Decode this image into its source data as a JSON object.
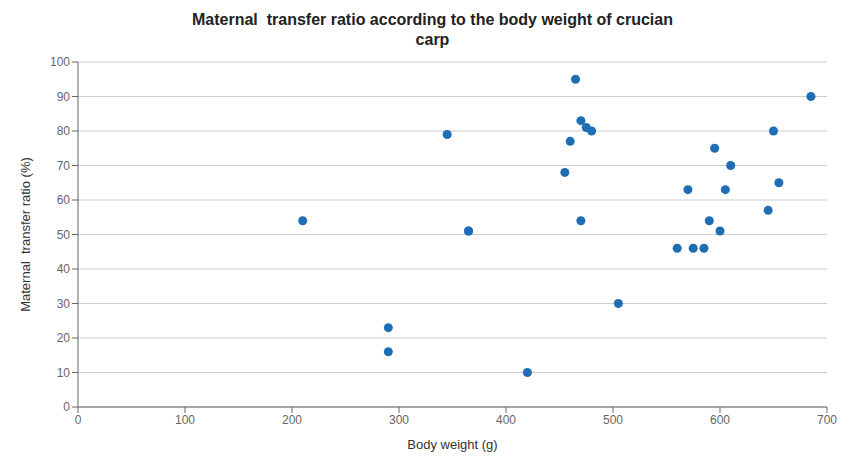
{
  "chart_data": {
    "type": "scatter",
    "title": "Maternal  transfer ratio according to the body weight of crucian\ncarp",
    "xlabel": "Body weight (g)",
    "ylabel": "Maternal  transfer ratio (%)",
    "x": [
      210,
      290,
      290,
      345,
      365,
      365,
      420,
      455,
      460,
      465,
      470,
      470,
      475,
      480,
      505,
      560,
      570,
      575,
      585,
      590,
      595,
      600,
      605,
      610,
      645,
      650,
      655,
      685
    ],
    "values": [
      54,
      16,
      23,
      79,
      51,
      51,
      10,
      68,
      77,
      95,
      83,
      54,
      81,
      80,
      30,
      46,
      63,
      46,
      46,
      54,
      75,
      51,
      63,
      70,
      57,
      80,
      65,
      90
    ],
    "color": "#1F6DB5",
    "marker": "circle",
    "xlim": [
      0,
      700
    ],
    "ylim": [
      0,
      100
    ],
    "xticks": [
      0,
      100,
      200,
      300,
      400,
      500,
      600,
      700
    ],
    "yticks": [
      0,
      10,
      20,
      30,
      40,
      50,
      60,
      70,
      80,
      90,
      100
    ],
    "grid": "y"
  }
}
